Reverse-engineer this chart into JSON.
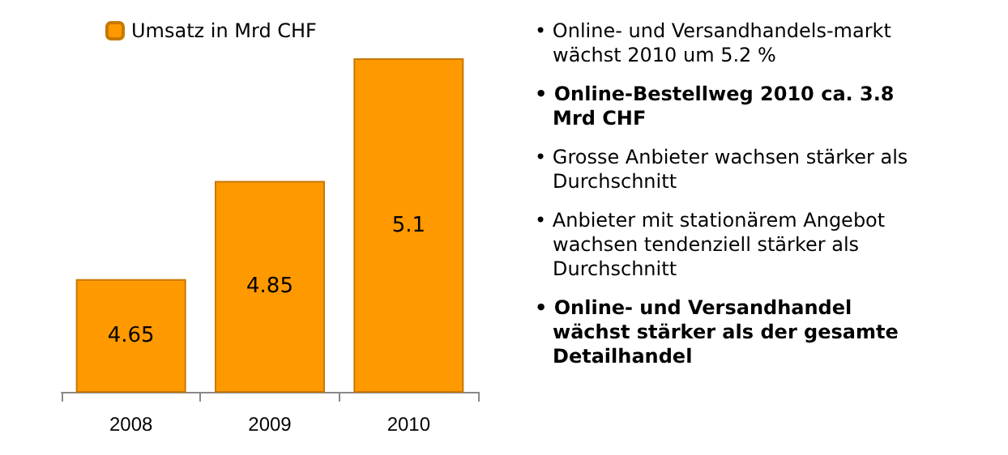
{
  "chart_data": {
    "type": "bar",
    "categories": [
      "2008",
      "2009",
      "2010"
    ],
    "series": [
      {
        "name": "Umsatz in Mrd CHF",
        "color": "#ff9900",
        "values": [
          4.65,
          4.85,
          5.1
        ]
      }
    ],
    "ylim": [
      4.42,
      5.1
    ],
    "tick_labels": "x",
    "data_labels": true,
    "grid": false,
    "legend": "top left",
    "annotations": [
      "• Online- und Versandhandels-markt wächst 2010 um 5.2 %",
      "• Online-Bestellweg 2010 ca. 3.8 Mrd CHF",
      "• Grosse Anbieter wachsen stärker als Durchschnitt",
      "• Anbieter mit stationärem Angebot wachsen tendenziell stärker als Durchschnitt",
      "• Online- und Versandhandel wächst stärker als der gesamte Detailhandel"
    ]
  }
}
